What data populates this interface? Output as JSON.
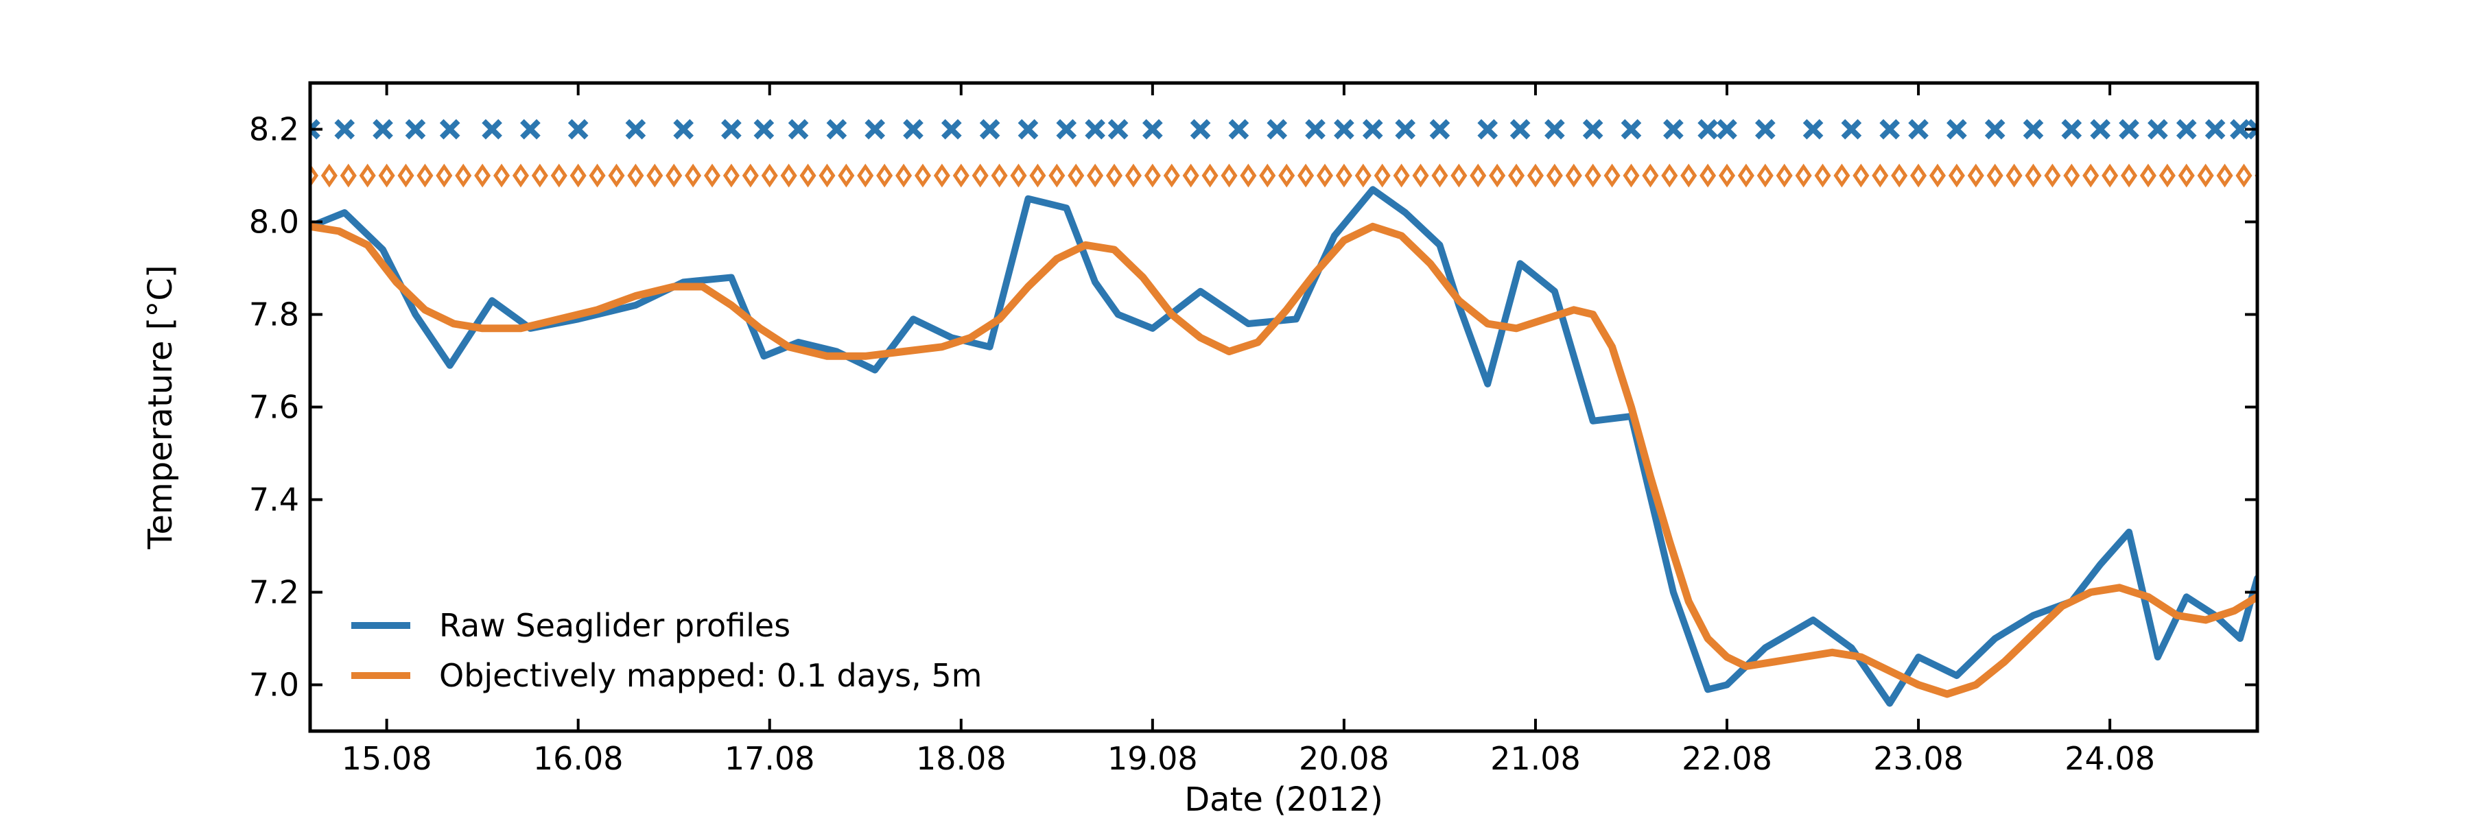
{
  "chart_data": {
    "type": "line",
    "title": "",
    "xlabel": "Date (2012)",
    "ylabel": "Temperature [°C]",
    "xlim": [
      14.6,
      24.77
    ],
    "ylim": [
      6.9,
      8.3
    ],
    "x_ticks": [
      15,
      16,
      17,
      18,
      19,
      20,
      21,
      22,
      23,
      24
    ],
    "x_tick_labels": [
      "15.08",
      "16.08",
      "17.08",
      "18.08",
      "19.08",
      "20.08",
      "21.08",
      "22.08",
      "23.08",
      "24.08"
    ],
    "y_ticks": [
      7.0,
      7.2,
      7.4,
      7.6,
      7.8,
      8.0,
      8.2
    ],
    "y_tick_labels": [
      "7.0",
      "7.2",
      "7.4",
      "7.6",
      "7.8",
      "8.0",
      "8.2"
    ],
    "grid": false,
    "legend_position": "lower-left",
    "series": [
      {
        "name": "Raw Seaglider profiles",
        "color": "#2c77b0",
        "x": [
          14.6,
          14.78,
          14.98,
          15.15,
          15.33,
          15.55,
          15.75,
          16.0,
          16.3,
          16.55,
          16.8,
          16.97,
          17.15,
          17.35,
          17.55,
          17.75,
          17.95,
          18.15,
          18.35,
          18.55,
          18.7,
          18.82,
          19.0,
          19.25,
          19.5,
          19.75,
          19.95,
          20.15,
          20.32,
          20.5,
          20.6,
          20.75,
          20.92,
          21.1,
          21.3,
          21.5,
          21.72,
          21.9,
          22.0,
          22.2,
          22.45,
          22.65,
          22.85,
          23.0,
          23.2,
          23.4,
          23.6,
          23.8,
          23.95,
          24.1,
          24.25,
          24.4,
          24.55,
          24.68,
          24.77
        ],
        "y": [
          7.99,
          8.02,
          7.94,
          7.8,
          7.69,
          7.83,
          7.77,
          7.79,
          7.82,
          7.87,
          7.88,
          7.71,
          7.74,
          7.72,
          7.68,
          7.79,
          7.75,
          7.73,
          8.05,
          8.03,
          7.87,
          7.8,
          7.77,
          7.85,
          7.78,
          7.79,
          7.97,
          8.07,
          8.02,
          7.95,
          7.82,
          7.65,
          7.91,
          7.85,
          7.57,
          7.58,
          7.2,
          6.99,
          7.0,
          7.08,
          7.14,
          7.08,
          6.96,
          7.06,
          7.02,
          7.1,
          7.15,
          7.18,
          7.26,
          7.33,
          7.06,
          7.19,
          7.15,
          7.1,
          7.23
        ]
      },
      {
        "name": "Objectively mapped: 0.1 days, 5m",
        "color": "#e6812f",
        "x": [
          14.6,
          14.75,
          14.9,
          15.05,
          15.2,
          15.35,
          15.5,
          15.7,
          15.9,
          16.1,
          16.3,
          16.5,
          16.65,
          16.8,
          16.95,
          17.1,
          17.3,
          17.5,
          17.7,
          17.9,
          18.05,
          18.2,
          18.35,
          18.5,
          18.65,
          18.8,
          18.95,
          19.1,
          19.25,
          19.4,
          19.55,
          19.7,
          19.85,
          20.0,
          20.15,
          20.3,
          20.45,
          20.6,
          20.75,
          20.9,
          21.05,
          21.2,
          21.3,
          21.4,
          21.5,
          21.6,
          21.7,
          21.8,
          21.9,
          22.0,
          22.1,
          22.25,
          22.4,
          22.55,
          22.7,
          22.85,
          23.0,
          23.15,
          23.3,
          23.45,
          23.6,
          23.75,
          23.9,
          24.05,
          24.2,
          24.35,
          24.5,
          24.65,
          24.77
        ],
        "y": [
          7.99,
          7.98,
          7.95,
          7.87,
          7.81,
          7.78,
          7.77,
          7.77,
          7.79,
          7.81,
          7.84,
          7.86,
          7.86,
          7.82,
          7.77,
          7.73,
          7.71,
          7.71,
          7.72,
          7.73,
          7.75,
          7.79,
          7.86,
          7.92,
          7.95,
          7.94,
          7.88,
          7.8,
          7.75,
          7.72,
          7.74,
          7.81,
          7.89,
          7.96,
          7.99,
          7.97,
          7.91,
          7.83,
          7.78,
          7.77,
          7.79,
          7.81,
          7.8,
          7.73,
          7.6,
          7.45,
          7.31,
          7.18,
          7.1,
          7.06,
          7.04,
          7.05,
          7.06,
          7.07,
          7.06,
          7.03,
          7.0,
          6.98,
          7.0,
          7.05,
          7.11,
          7.17,
          7.2,
          7.21,
          7.19,
          7.15,
          7.14,
          7.16,
          7.19
        ]
      }
    ],
    "markers": [
      {
        "name": "raw-profile-times",
        "symbol": "x",
        "color": "#2c77b0",
        "y": 8.2,
        "x": [
          14.6,
          14.78,
          14.98,
          15.15,
          15.33,
          15.55,
          15.75,
          16.0,
          16.3,
          16.55,
          16.8,
          16.97,
          17.15,
          17.35,
          17.55,
          17.75,
          17.95,
          18.15,
          18.35,
          18.55,
          18.7,
          18.82,
          19.0,
          19.25,
          19.45,
          19.65,
          19.85,
          20.0,
          20.15,
          20.32,
          20.5,
          20.75,
          20.92,
          21.1,
          21.3,
          21.5,
          21.72,
          21.9,
          22.0,
          22.2,
          22.45,
          22.65,
          22.85,
          23.0,
          23.2,
          23.4,
          23.6,
          23.8,
          23.95,
          24.1,
          24.25,
          24.4,
          24.55,
          24.68,
          24.77
        ]
      },
      {
        "name": "mapped-grid-times",
        "symbol": "diamond",
        "color": "#e6812f",
        "y": 8.1,
        "x_start": 14.6,
        "x_end": 24.77,
        "x_step": 0.1
      }
    ]
  }
}
